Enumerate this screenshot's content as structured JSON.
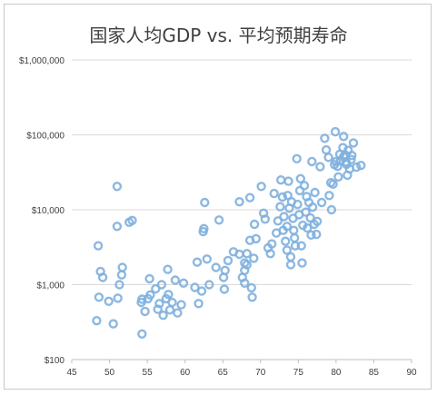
{
  "chart_data": {
    "type": "scatter",
    "title": "国家人均GDP vs. 平均预期寿命",
    "xlabel": "",
    "ylabel": "",
    "x_scale": "linear",
    "y_scale": "log",
    "xlim": [
      45,
      90
    ],
    "ylim": [
      100,
      1000000
    ],
    "x_ticks": [
      "45",
      "50",
      "55",
      "60",
      "65",
      "70",
      "75",
      "80",
      "85",
      "90"
    ],
    "y_ticks": [
      "$100",
      "$1,000",
      "$10,000",
      "$100,000",
      "$1,000,000"
    ],
    "grid": "horizontal",
    "legend": "none",
    "marker": "hollow circle",
    "color": "#7fb0de",
    "points": [
      [
        48.5,
        3300
      ],
      [
        48.3,
        330
      ],
      [
        48.8,
        1500
      ],
      [
        49.1,
        1250
      ],
      [
        48.6,
        680
      ],
      [
        49.9,
        600
      ],
      [
        50.5,
        300
      ],
      [
        51.0,
        6000
      ],
      [
        51.0,
        20500
      ],
      [
        51.1,
        660
      ],
      [
        51.3,
        1000
      ],
      [
        51.6,
        1350
      ],
      [
        51.7,
        1700
      ],
      [
        52.6,
        6800
      ],
      [
        53.0,
        7200
      ],
      [
        54.2,
        580
      ],
      [
        54.3,
        640
      ],
      [
        54.3,
        220
      ],
      [
        54.7,
        440
      ],
      [
        55.1,
        650
      ],
      [
        55.3,
        1200
      ],
      [
        55.4,
        730
      ],
      [
        56.1,
        880
      ],
      [
        56.4,
        470
      ],
      [
        56.6,
        560
      ],
      [
        56.9,
        1000
      ],
      [
        57.1,
        390
      ],
      [
        57.5,
        650
      ],
      [
        57.7,
        1600
      ],
      [
        57.8,
        740
      ],
      [
        58.0,
        460
      ],
      [
        58.3,
        580
      ],
      [
        58.7,
        1150
      ],
      [
        59.0,
        420
      ],
      [
        59.5,
        540
      ],
      [
        59.8,
        1050
      ],
      [
        61.3,
        920
      ],
      [
        61.6,
        2000
      ],
      [
        61.8,
        560
      ],
      [
        62.2,
        820
      ],
      [
        62.4,
        5100
      ],
      [
        62.5,
        5600
      ],
      [
        62.6,
        12500
      ],
      [
        62.9,
        2200
      ],
      [
        63.2,
        1000
      ],
      [
        64.1,
        1700
      ],
      [
        64.5,
        7300
      ],
      [
        65.1,
        1250
      ],
      [
        65.3,
        1550
      ],
      [
        65.2,
        870
      ],
      [
        65.7,
        2100
      ],
      [
        66.4,
        2750
      ],
      [
        67.2,
        2550
      ],
      [
        67.2,
        12800
      ],
      [
        67.6,
        1250
      ],
      [
        67.9,
        1550
      ],
      [
        67.9,
        1950
      ],
      [
        67.9,
        1050
      ],
      [
        68.2,
        1850
      ],
      [
        68.2,
        2600
      ],
      [
        68.6,
        3900
      ],
      [
        68.6,
        14500
      ],
      [
        68.9,
        680
      ],
      [
        68.8,
        910
      ],
      [
        69.1,
        2250
      ],
      [
        69.2,
        6400
      ],
      [
        69.4,
        4100
      ],
      [
        70.1,
        20500
      ],
      [
        70.4,
        9000
      ],
      [
        70.6,
        7500
      ],
      [
        71.0,
        3100
      ],
      [
        71.3,
        2600
      ],
      [
        71.5,
        3500
      ],
      [
        71.8,
        16500
      ],
      [
        72.1,
        4900
      ],
      [
        72.3,
        7100
      ],
      [
        72.6,
        11000
      ],
      [
        72.7,
        25000
      ],
      [
        72.9,
        14800
      ],
      [
        73.0,
        5300
      ],
      [
        73.1,
        8100
      ],
      [
        73.3,
        3800
      ],
      [
        73.5,
        2900
      ],
      [
        73.5,
        6000
      ],
      [
        73.6,
        15500
      ],
      [
        73.7,
        24000
      ],
      [
        73.8,
        10500
      ],
      [
        74.0,
        1850
      ],
      [
        74.0,
        2350
      ],
      [
        74.1,
        12800
      ],
      [
        74.3,
        7700
      ],
      [
        74.4,
        5300
      ],
      [
        74.5,
        4200
      ],
      [
        74.6,
        3300
      ],
      [
        74.8,
        48000
      ],
      [
        74.9,
        11800
      ],
      [
        75.1,
        8600
      ],
      [
        75.2,
        18000
      ],
      [
        75.3,
        26000
      ],
      [
        75.4,
        3300
      ],
      [
        75.5,
        1950
      ],
      [
        75.6,
        6200
      ],
      [
        75.8,
        21000
      ],
      [
        76.0,
        9300
      ],
      [
        76.1,
        15000
      ],
      [
        76.2,
        5700
      ],
      [
        76.4,
        12500
      ],
      [
        76.6,
        7800
      ],
      [
        76.7,
        4600
      ],
      [
        76.8,
        44000
      ],
      [
        76.9,
        10800
      ],
      [
        77.1,
        6400
      ],
      [
        77.2,
        17000
      ],
      [
        77.4,
        4700
      ],
      [
        77.5,
        7000
      ],
      [
        77.9,
        37500
      ],
      [
        78.1,
        12500
      ],
      [
        78.5,
        90000
      ],
      [
        78.7,
        63000
      ],
      [
        79.0,
        50000
      ],
      [
        79.1,
        15500
      ],
      [
        79.3,
        23000
      ],
      [
        79.4,
        10000
      ],
      [
        79.6,
        22000
      ],
      [
        79.9,
        110000
      ],
      [
        80.0,
        44000
      ],
      [
        80.2,
        38000
      ],
      [
        80.3,
        27500
      ],
      [
        80.6,
        45000
      ],
      [
        80.9,
        67500
      ],
      [
        81.0,
        95000
      ],
      [
        81.0,
        51000
      ],
      [
        81.2,
        54000
      ],
      [
        81.3,
        43500
      ],
      [
        81.5,
        29000
      ],
      [
        81.6,
        62000
      ],
      [
        81.8,
        35000
      ],
      [
        82.1,
        53000
      ],
      [
        82.3,
        78000
      ],
      [
        82.7,
        37000
      ],
      [
        83.3,
        39000
      ],
      [
        80.5,
        55000
      ],
      [
        81.4,
        40500
      ],
      [
        79.8,
        40000
      ],
      [
        82.0,
        47000
      ]
    ]
  }
}
